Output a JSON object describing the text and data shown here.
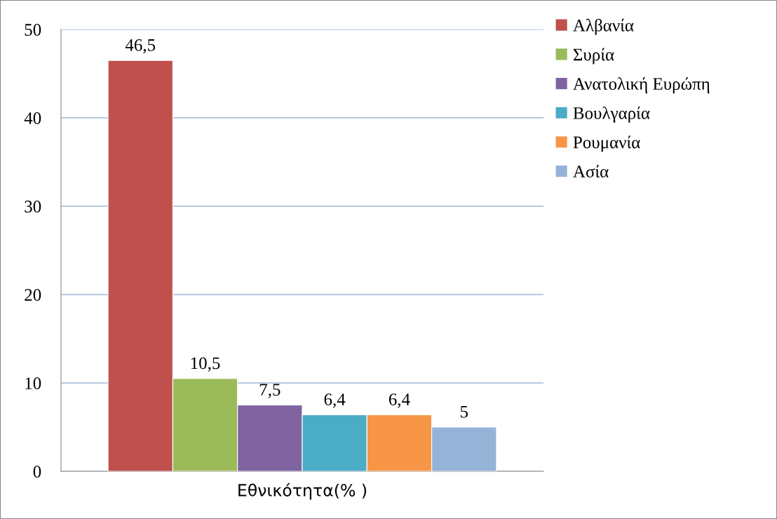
{
  "chart_data": {
    "type": "bar",
    "categories": [
      "Εθνικότητα(% )"
    ],
    "series": [
      {
        "name": "Αλβανία",
        "color": "#c0504d",
        "values": [
          46.5
        ],
        "value_labels": [
          "46,5"
        ]
      },
      {
        "name": "Συρία",
        "color": "#9bbb59",
        "values": [
          10.5
        ],
        "value_labels": [
          "10,5"
        ]
      },
      {
        "name": "Ανατολική Ευρώπη",
        "color": "#8064a2",
        "values": [
          7.5
        ],
        "value_labels": [
          "7,5"
        ]
      },
      {
        "name": "Βουλγαρία",
        "color": "#4bacc6",
        "values": [
          6.4
        ],
        "value_labels": [
          "6,4"
        ]
      },
      {
        "name": "Ρουμανία",
        "color": "#f79646",
        "values": [
          6.4
        ],
        "value_labels": [
          "6,4"
        ]
      },
      {
        "name": "Ασία",
        "color": "#95b3d7",
        "values": [
          5
        ],
        "value_labels": [
          "5"
        ]
      }
    ],
    "ylim": [
      0,
      50
    ],
    "yticks": [
      0,
      10,
      20,
      30,
      40,
      50
    ],
    "grid": "y",
    "legend": "top right"
  }
}
